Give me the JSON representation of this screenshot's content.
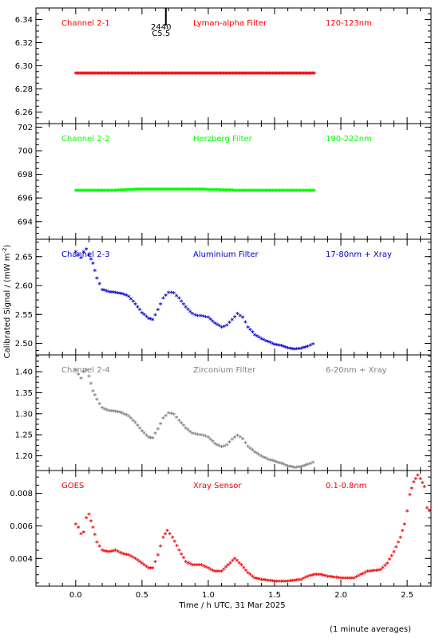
{
  "x_label": "Time / h UTC, 31 Mar 2025",
  "y_label_main": "Calibrated Signal / (mW m",
  "y_label_sup": "-2",
  "y_label_close": ")",
  "footnote": "(1 minute averages)",
  "event_marker": {
    "label_top": "2440",
    "label_bottom": "C5.5",
    "time_h": 0.68
  },
  "x_ticks": [
    "0.0",
    "0.5",
    "1.0",
    "1.5",
    "2.0",
    "2.5"
  ],
  "colors": {
    "red": "#ff0000",
    "green": "#00ff00",
    "blue": "#0000cc",
    "grey": "#808080",
    "goes": "#ee0000"
  },
  "chart_data": [
    {
      "type": "scatter",
      "name_label": "Channel 2-1",
      "filter_label": "Lyman-alpha Filter",
      "band_label": "120-123nm",
      "color": "#ff0000",
      "x": [
        0.0,
        1.8
      ],
      "ylim": [
        6.25,
        6.35
      ],
      "yticks": [
        "6.26",
        "6.28",
        "6.30",
        "6.32",
        "6.34"
      ],
      "points": [
        [
          0.0,
          6.292
        ],
        [
          0.3,
          6.292
        ],
        [
          0.6,
          6.292
        ],
        [
          0.9,
          6.292
        ],
        [
          1.2,
          6.292
        ],
        [
          1.5,
          6.292
        ],
        [
          1.8,
          6.292
        ]
      ]
    },
    {
      "type": "scatter",
      "name_label": "Channel 2-2",
      "filter_label": "Herzberg Filter",
      "band_label": "190-222nm",
      "color": "#00ff00",
      "ylim": [
        692.5,
        702.3
      ],
      "yticks": [
        "694",
        "696",
        "698",
        "700",
        "702"
      ],
      "points": [
        [
          0.0,
          696.5
        ],
        [
          0.3,
          696.5
        ],
        [
          0.5,
          696.6
        ],
        [
          0.9,
          696.6
        ],
        [
          1.2,
          696.5
        ],
        [
          1.5,
          696.5
        ],
        [
          1.8,
          696.5
        ]
      ]
    },
    {
      "type": "scatter",
      "name_label": "Channel 2-3",
      "filter_label": "Aluminium Filter",
      "band_label": "17-80nm + Xray",
      "color": "#0000cc",
      "ylim": [
        2.48,
        2.68
      ],
      "yticks": [
        "2.50",
        "2.55",
        "2.60",
        "2.65"
      ],
      "points": [
        [
          0.0,
          2.655
        ],
        [
          0.02,
          2.65
        ],
        [
          0.04,
          2.645
        ],
        [
          0.06,
          2.655
        ],
        [
          0.08,
          2.66
        ],
        [
          0.1,
          2.65
        ],
        [
          0.13,
          2.635
        ],
        [
          0.16,
          2.61
        ],
        [
          0.2,
          2.59
        ],
        [
          0.25,
          2.586
        ],
        [
          0.3,
          2.585
        ],
        [
          0.35,
          2.583
        ],
        [
          0.4,
          2.578
        ],
        [
          0.45,
          2.565
        ],
        [
          0.5,
          2.55
        ],
        [
          0.55,
          2.54
        ],
        [
          0.58,
          2.538
        ],
        [
          0.62,
          2.555
        ],
        [
          0.66,
          2.575
        ],
        [
          0.7,
          2.585
        ],
        [
          0.74,
          2.584
        ],
        [
          0.78,
          2.575
        ],
        [
          0.83,
          2.56
        ],
        [
          0.88,
          2.548
        ],
        [
          0.92,
          2.545
        ],
        [
          0.96,
          2.544
        ],
        [
          1.0,
          2.542
        ],
        [
          1.05,
          2.532
        ],
        [
          1.1,
          2.525
        ],
        [
          1.14,
          2.528
        ],
        [
          1.18,
          2.538
        ],
        [
          1.22,
          2.548
        ],
        [
          1.26,
          2.542
        ],
        [
          1.3,
          2.525
        ],
        [
          1.35,
          2.512
        ],
        [
          1.4,
          2.505
        ],
        [
          1.45,
          2.5
        ],
        [
          1.5,
          2.495
        ],
        [
          1.55,
          2.493
        ],
        [
          1.6,
          2.489
        ],
        [
          1.65,
          2.487
        ],
        [
          1.7,
          2.488
        ],
        [
          1.75,
          2.492
        ],
        [
          1.79,
          2.496
        ]
      ]
    },
    {
      "type": "scatter",
      "name_label": "Channel 2-4",
      "filter_label": "Zirconium Filter",
      "band_label": "6-20nm + Xray",
      "color": "#808080",
      "ylim": [
        1.165,
        1.44
      ],
      "yticks": [
        "1.20",
        "1.25",
        "1.30",
        "1.35",
        "1.40"
      ],
      "points": [
        [
          0.0,
          1.4
        ],
        [
          0.02,
          1.39
        ],
        [
          0.04,
          1.38
        ],
        [
          0.06,
          1.395
        ],
        [
          0.08,
          1.4
        ],
        [
          0.1,
          1.385
        ],
        [
          0.13,
          1.35
        ],
        [
          0.16,
          1.33
        ],
        [
          0.2,
          1.31
        ],
        [
          0.25,
          1.303
        ],
        [
          0.3,
          1.302
        ],
        [
          0.35,
          1.298
        ],
        [
          0.4,
          1.29
        ],
        [
          0.45,
          1.275
        ],
        [
          0.5,
          1.255
        ],
        [
          0.55,
          1.24
        ],
        [
          0.58,
          1.238
        ],
        [
          0.62,
          1.26
        ],
        [
          0.66,
          1.285
        ],
        [
          0.7,
          1.298
        ],
        [
          0.74,
          1.295
        ],
        [
          0.78,
          1.28
        ],
        [
          0.83,
          1.262
        ],
        [
          0.88,
          1.249
        ],
        [
          0.92,
          1.247
        ],
        [
          0.96,
          1.245
        ],
        [
          1.0,
          1.24
        ],
        [
          1.05,
          1.225
        ],
        [
          1.1,
          1.217
        ],
        [
          1.14,
          1.222
        ],
        [
          1.18,
          1.235
        ],
        [
          1.22,
          1.245
        ],
        [
          1.26,
          1.236
        ],
        [
          1.3,
          1.218
        ],
        [
          1.35,
          1.205
        ],
        [
          1.4,
          1.195
        ],
        [
          1.45,
          1.188
        ],
        [
          1.5,
          1.183
        ],
        [
          1.55,
          1.178
        ],
        [
          1.6,
          1.172
        ],
        [
          1.65,
          1.168
        ],
        [
          1.7,
          1.17
        ],
        [
          1.75,
          1.175
        ],
        [
          1.79,
          1.18
        ]
      ]
    },
    {
      "type": "scatter",
      "name_label": "GOES",
      "filter_label": "Xray Sensor",
      "band_label": "0.1-0.8nm",
      "color": "#ee0000",
      "ylim": [
        0.0023,
        0.0094
      ],
      "yticks": [
        "0.004",
        "0.006",
        "0.008"
      ],
      "points": [
        [
          0.0,
          0.006
        ],
        [
          0.02,
          0.0058
        ],
        [
          0.04,
          0.0054
        ],
        [
          0.06,
          0.0055
        ],
        [
          0.08,
          0.0064
        ],
        [
          0.1,
          0.0066
        ],
        [
          0.13,
          0.0058
        ],
        [
          0.16,
          0.0049
        ],
        [
          0.2,
          0.0044
        ],
        [
          0.25,
          0.0043
        ],
        [
          0.3,
          0.0044
        ],
        [
          0.35,
          0.0042
        ],
        [
          0.4,
          0.0041
        ],
        [
          0.45,
          0.0039
        ],
        [
          0.5,
          0.0036
        ],
        [
          0.55,
          0.0033
        ],
        [
          0.58,
          0.0033
        ],
        [
          0.62,
          0.0041
        ],
        [
          0.66,
          0.0052
        ],
        [
          0.69,
          0.0056
        ],
        [
          0.73,
          0.0052
        ],
        [
          0.78,
          0.0044
        ],
        [
          0.83,
          0.0037
        ],
        [
          0.88,
          0.0035
        ],
        [
          0.95,
          0.0035
        ],
        [
          1.0,
          0.0033
        ],
        [
          1.05,
          0.0031
        ],
        [
          1.1,
          0.0031
        ],
        [
          1.15,
          0.0035
        ],
        [
          1.2,
          0.0039
        ],
        [
          1.25,
          0.0035
        ],
        [
          1.3,
          0.003
        ],
        [
          1.35,
          0.0027
        ],
        [
          1.4,
          0.0026
        ],
        [
          1.5,
          0.0025
        ],
        [
          1.6,
          0.0025
        ],
        [
          1.7,
          0.0026
        ],
        [
          1.75,
          0.0028
        ],
        [
          1.8,
          0.0029
        ],
        [
          1.85,
          0.0029
        ],
        [
          1.9,
          0.0028
        ],
        [
          2.0,
          0.0027
        ],
        [
          2.1,
          0.0027
        ],
        [
          2.2,
          0.0031
        ],
        [
          2.3,
          0.0032
        ],
        [
          2.35,
          0.0036
        ],
        [
          2.4,
          0.0043
        ],
        [
          2.45,
          0.0052
        ],
        [
          2.48,
          0.006
        ],
        [
          2.5,
          0.0068
        ],
        [
          2.52,
          0.0078
        ],
        [
          2.55,
          0.0086
        ],
        [
          2.58,
          0.009
        ],
        [
          2.6,
          0.0088
        ],
        [
          2.63,
          0.0083
        ],
        [
          2.65,
          0.007
        ],
        [
          2.67,
          0.0068
        ]
      ]
    }
  ]
}
